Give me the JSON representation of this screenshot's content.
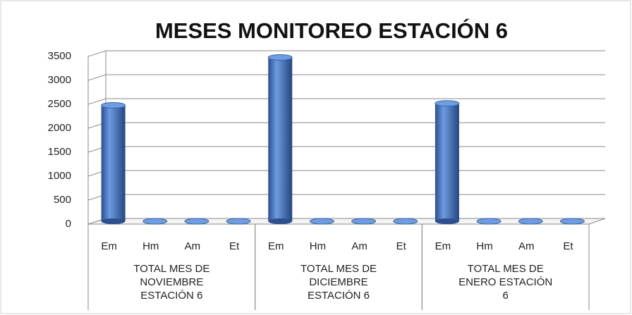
{
  "chart_data": {
    "type": "bar",
    "title": "MESES MONITOREO ESTACIÓN 6",
    "categories": [
      "Em",
      "Hm",
      "Am",
      "Et",
      "Em",
      "Hm",
      "Am",
      "Et",
      "Em",
      "Hm",
      "Am",
      "Et"
    ],
    "groups": [
      "TOTAL MES DE NOVIEMBRE ESTACIÓN 6",
      "TOTAL MES DE DICIEMBRE ESTACIÓN 6",
      "TOTAL MES DE ENERO ESTACIÓN 6"
    ],
    "values": [
      2420,
      0,
      0,
      0,
      3420,
      0,
      0,
      0,
      2460,
      0,
      0,
      0
    ],
    "color": "#4a7ac4",
    "ylim": [
      0,
      3500
    ],
    "yticks": [
      0,
      500,
      1000,
      1500,
      2000,
      2500,
      3000,
      3500
    ],
    "grid": true
  }
}
